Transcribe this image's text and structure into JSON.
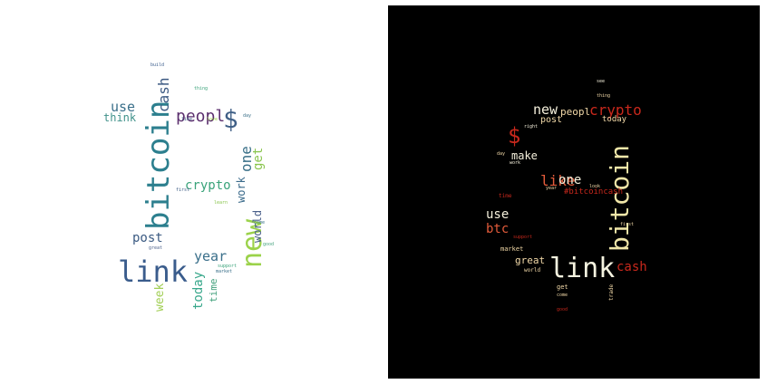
{
  "left_cloud": {
    "background": "#ffffff",
    "words": {
      "bitcoin": "bitcoin",
      "link": "link",
      "new": "new",
      "dollar": "$",
      "cash": "cash",
      "use": "use",
      "think": "think",
      "peopl": "peopl",
      "one": "one",
      "get": "get",
      "crypto": "crypto",
      "work": "work",
      "world": "world",
      "post": "post",
      "year": "year",
      "week": "week",
      "today": "today",
      "time": "time",
      "build": "build",
      "day": "day",
      "great": "great",
      "market": "market",
      "support": "support",
      "first": "first",
      "learn": "learn",
      "good": "good",
      "come": "come",
      "like": "like",
      "love": "love",
      "thing": "thing"
    }
  },
  "right_cloud": {
    "background": "#000000",
    "words": {
      "bitcoin": "bitcoin",
      "link": "link",
      "crypto": "crypto",
      "new": "new",
      "peopl": "peopl",
      "post": "post",
      "today": "today",
      "dollar": "$",
      "make": "make",
      "like": "like",
      "one": "one",
      "bitcoincash": "#bitcoincash",
      "use": "use",
      "btc": "btc",
      "cash": "cash",
      "great": "great",
      "market": "market",
      "world": "world",
      "get": "get",
      "trade": "trade",
      "time": "time",
      "year": "year",
      "first": "first",
      "support": "support",
      "right": "right",
      "work": "work",
      "thing": "thing",
      "good": "good",
      "come": "come",
      "day": "day",
      "look": "look",
      "see": "see"
    }
  }
}
